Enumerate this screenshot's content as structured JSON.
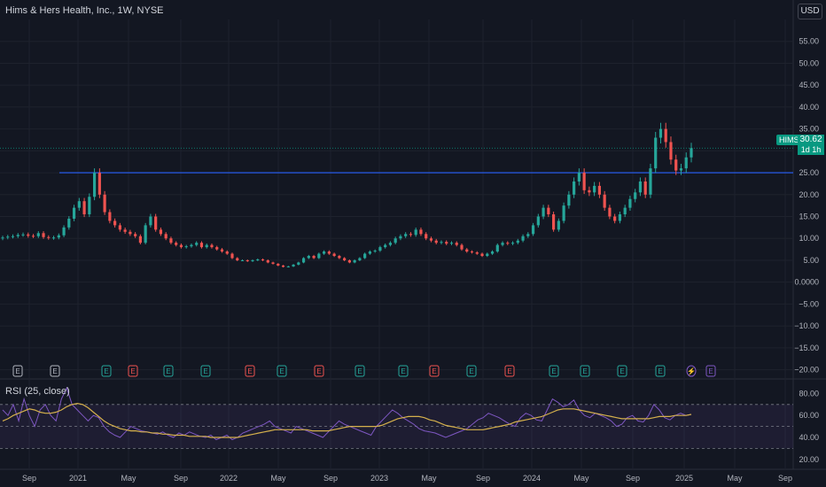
{
  "header": {
    "title": "Hims & Hers Health, Inc., 1W, NYSE",
    "currency": "USD"
  },
  "price_label": {
    "symbol": "HIMS",
    "price": "30.62",
    "countdown": "1d 1h"
  },
  "rsi": {
    "title": "RSI (25, close)"
  },
  "colors": {
    "background": "#131722",
    "up": "#26a69a",
    "down": "#ef5350",
    "hline": "#2962ff",
    "rsi": "#7e57c2",
    "rsi_ma": "#d4b04c",
    "earn_green": "#26a69a",
    "earn_red": "#ef5350",
    "earn_plain": "#b2b5be"
  },
  "chart_data": [
    {
      "type": "line",
      "subtype": "candlestick",
      "title": "Hims & Hers Health, Inc., 1W, NYSE",
      "ylim": [
        -21.5,
        60
      ],
      "y_ticks": [
        "55.00",
        "50.00",
        "45.00",
        "40.00",
        "35.00",
        "30.00",
        "25.00",
        "20.00",
        "15.00",
        "10.00",
        "5.00",
        "0.0000",
        "−5.00",
        "−10.00",
        "−15.00",
        "−20.00"
      ],
      "y_tick_values": [
        55,
        50,
        45,
        40,
        35,
        30,
        25,
        20,
        15,
        10,
        5,
        0,
        -5,
        -10,
        -15,
        -20
      ],
      "x_ticks": [
        "Sep",
        "2021",
        "May",
        "Sep",
        "2022",
        "May",
        "Sep",
        "2023",
        "May",
        "Sep",
        "2024",
        "May",
        "Sep",
        "2025",
        "May",
        "Sep"
      ],
      "horizontal_line": 25,
      "last_price": 30.62,
      "series": [
        {
          "values": [
            10.2,
            10.4,
            10.5,
            10.8,
            10.9,
            10.6,
            10.5,
            11.2,
            10.3,
            10.1,
            10.2,
            10.7,
            12.5,
            14.5,
            17.0,
            18.5,
            15.5,
            19.5,
            25.0,
            20.0,
            16.0,
            14.0,
            13.0,
            12.0,
            11.5,
            11.0,
            10.5,
            9.0,
            13.0,
            15.0,
            12.0,
            11.0,
            10.0,
            9.0,
            8.5,
            8.0,
            8.2,
            8.5,
            9.0,
            8.0,
            8.5,
            8.0,
            7.5,
            7.0,
            6.5,
            5.5,
            5.0,
            5.0,
            4.8,
            5.0,
            5.2,
            5.0,
            4.5,
            4.2,
            3.8,
            3.5,
            3.6,
            4.0,
            4.5,
            5.5,
            6.0,
            5.5,
            6.5,
            7.0,
            6.5,
            6.0,
            5.5,
            5.0,
            4.5,
            5.0,
            5.5,
            6.5,
            7.0,
            7.2,
            8.0,
            8.5,
            9.0,
            10.0,
            10.5,
            11.0,
            10.8,
            12.0,
            11.0,
            10.0,
            9.5,
            9.0,
            9.2,
            8.8,
            9.0,
            8.5,
            7.5,
            7.0,
            6.8,
            6.5,
            6.0,
            6.5,
            7.0,
            8.5,
            9.0,
            8.8,
            9.0,
            9.5,
            10.5,
            11.0,
            13.0,
            15.0,
            17.0,
            15.5,
            12.0,
            14.0,
            17.5,
            20.0,
            23.0,
            25.0,
            21.0,
            20.5,
            22.0,
            20.0,
            17.0,
            15.0,
            14.0,
            15.5,
            17.0,
            19.0,
            20.5,
            23.0,
            20.0,
            26.0,
            33.0,
            35.0,
            32.0,
            28.0,
            25.5,
            26.0,
            28.5,
            30.62
          ]
        }
      ]
    },
    {
      "type": "line",
      "title": "RSI (25, close)",
      "ylim": [
        15,
        90
      ],
      "y_ticks": [
        "80.00",
        "60.00",
        "40.00",
        "20.00"
      ],
      "y_tick_values": [
        80,
        60,
        40,
        20
      ],
      "bands": [
        70,
        50,
        30
      ],
      "series": [
        {
          "name": "RSI",
          "values": [
            65,
            60,
            70,
            55,
            75,
            60,
            50,
            65,
            70,
            60,
            55,
            75,
            85,
            70,
            65,
            60,
            55,
            60,
            58,
            50,
            45,
            42,
            40,
            45,
            50,
            48,
            46,
            45,
            44,
            43,
            45,
            42,
            40,
            44,
            42,
            45,
            43,
            41,
            40,
            42,
            38,
            40,
            42,
            38,
            40,
            44,
            46,
            48,
            50,
            52,
            55,
            50,
            48,
            46,
            44,
            50,
            48,
            46,
            44,
            42,
            40,
            45,
            50,
            55,
            52,
            50,
            48,
            46,
            44,
            42,
            50,
            55,
            60,
            65,
            62,
            58,
            55,
            52,
            48,
            46,
            45,
            44,
            42,
            40,
            42,
            44,
            46,
            48,
            52,
            56,
            58,
            62,
            60,
            58,
            55,
            52,
            50,
            58,
            62,
            60,
            56,
            55,
            65,
            75,
            72,
            68,
            70,
            74,
            65,
            60,
            58,
            62,
            60,
            58,
            55,
            50,
            52,
            58,
            60,
            55,
            54,
            60,
            70,
            65,
            58,
            56,
            60,
            62,
            60,
            61
          ]
        },
        {
          "name": "RSI-based MA",
          "values": [
            55,
            57,
            60,
            62,
            64,
            66,
            65,
            63,
            62,
            62,
            63,
            65,
            68,
            70,
            71,
            70,
            67,
            63,
            59,
            55,
            52,
            50,
            48,
            47,
            46,
            46,
            45,
            45,
            44,
            44,
            43,
            43,
            42,
            42,
            42,
            41,
            41,
            41,
            41,
            40,
            40,
            40,
            40,
            40,
            40,
            41,
            42,
            43,
            44,
            45,
            46,
            47,
            47,
            47,
            47,
            47,
            47,
            47,
            46,
            46,
            46,
            46,
            47,
            48,
            49,
            50,
            50,
            50,
            50,
            50,
            50,
            51,
            53,
            55,
            57,
            58,
            59,
            59,
            59,
            58,
            56,
            55,
            53,
            51,
            50,
            49,
            48,
            47,
            47,
            47,
            47,
            48,
            49,
            50,
            51,
            52,
            54,
            55,
            56,
            57,
            58,
            59,
            61,
            63,
            65,
            66,
            66,
            66,
            65,
            64,
            63,
            62,
            61,
            60,
            59,
            58,
            57,
            57,
            57,
            57,
            57,
            57,
            58,
            59,
            59,
            59,
            60,
            60,
            60,
            61
          ]
        }
      ]
    }
  ],
  "earnings": [
    "E",
    "E",
    "E",
    "E",
    "E",
    "E",
    "E",
    "E",
    "E",
    "E",
    "E",
    "E",
    "E",
    "E",
    "E",
    "E",
    "E",
    "E",
    "⚡",
    "E"
  ]
}
